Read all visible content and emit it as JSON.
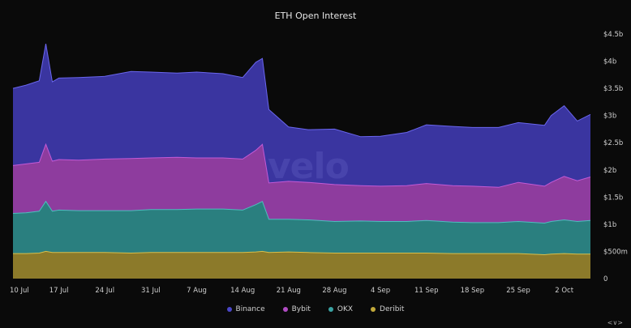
{
  "chart_data": {
    "type": "area",
    "stacked": true,
    "title": "ETH Open Interest",
    "watermark": "velo",
    "x_tick_labels": [
      "10 Jul",
      "17 Jul",
      "24 Jul",
      "31 Jul",
      "7 Aug",
      "14 Aug",
      "21 Aug",
      "28 Aug",
      "4 Sep",
      "11 Sep",
      "18 Sep",
      "25 Sep",
      "2 Oct"
    ],
    "y_tick_labels": [
      "0",
      "$500m",
      "$1b",
      "$1.5b",
      "$2b",
      "$2.5b",
      "$3b",
      "$3.5b",
      "$4b",
      "$4.5b"
    ],
    "y_tick_values": [
      0,
      0.5,
      1,
      1.5,
      2,
      2.5,
      3,
      3.5,
      4,
      4.5
    ],
    "ylim": [
      0,
      4.5
    ],
    "y_unit": "USD billions",
    "x_start": "10 Jul",
    "x_end": "6 Oct",
    "legend_position": "bottom-center",
    "x": [
      "10 Jul",
      "12 Jul",
      "14 Jul",
      "15 Jul",
      "16 Jul",
      "17 Jul",
      "20 Jul",
      "24 Jul",
      "28 Jul",
      "31 Jul",
      "4 Aug",
      "7 Aug",
      "11 Aug",
      "14 Aug",
      "16 Aug",
      "17 Aug",
      "18 Aug",
      "21 Aug",
      "24 Aug",
      "28 Aug",
      "1 Sep",
      "4 Sep",
      "8 Sep",
      "11 Sep",
      "15 Sep",
      "18 Sep",
      "22 Sep",
      "25 Sep",
      "29 Sep",
      "30 Sep",
      "2 Oct",
      "4 Oct",
      "6 Oct"
    ],
    "series": [
      {
        "name": "Deribit",
        "color": "#8c7a2a",
        "values": [
          0.46,
          0.46,
          0.47,
          0.5,
          0.48,
          0.48,
          0.48,
          0.48,
          0.47,
          0.48,
          0.48,
          0.48,
          0.48,
          0.48,
          0.49,
          0.5,
          0.48,
          0.49,
          0.48,
          0.47,
          0.47,
          0.47,
          0.47,
          0.47,
          0.46,
          0.46,
          0.46,
          0.46,
          0.44,
          0.45,
          0.46,
          0.45,
          0.45
        ]
      },
      {
        "name": "OKX",
        "color": "#2a7f7f",
        "values": [
          0.74,
          0.75,
          0.77,
          0.92,
          0.76,
          0.78,
          0.77,
          0.77,
          0.78,
          0.79,
          0.79,
          0.8,
          0.8,
          0.78,
          0.87,
          0.92,
          0.61,
          0.6,
          0.6,
          0.58,
          0.59,
          0.58,
          0.58,
          0.6,
          0.58,
          0.57,
          0.57,
          0.59,
          0.58,
          0.6,
          0.62,
          0.6,
          0.62
        ]
      },
      {
        "name": "Bybit",
        "color": "#8e3c9e",
        "values": [
          0.88,
          0.9,
          0.9,
          1.05,
          0.92,
          0.93,
          0.93,
          0.95,
          0.96,
          0.95,
          0.96,
          0.94,
          0.94,
          0.94,
          1.0,
          1.05,
          0.67,
          0.7,
          0.69,
          0.68,
          0.65,
          0.65,
          0.66,
          0.68,
          0.67,
          0.67,
          0.65,
          0.72,
          0.68,
          0.72,
          0.8,
          0.75,
          0.8
        ]
      },
      {
        "name": "Binance",
        "color": "#3a35a0",
        "values": [
          1.42,
          1.45,
          1.5,
          1.85,
          1.46,
          1.5,
          1.52,
          1.52,
          1.6,
          1.58,
          1.55,
          1.58,
          1.55,
          1.5,
          1.62,
          1.58,
          1.35,
          1.0,
          0.97,
          1.02,
          0.9,
          0.92,
          0.98,
          1.08,
          1.09,
          1.08,
          1.1,
          1.1,
          1.12,
          1.23,
          1.3,
          1.1,
          1.15
        ]
      }
    ]
  }
}
